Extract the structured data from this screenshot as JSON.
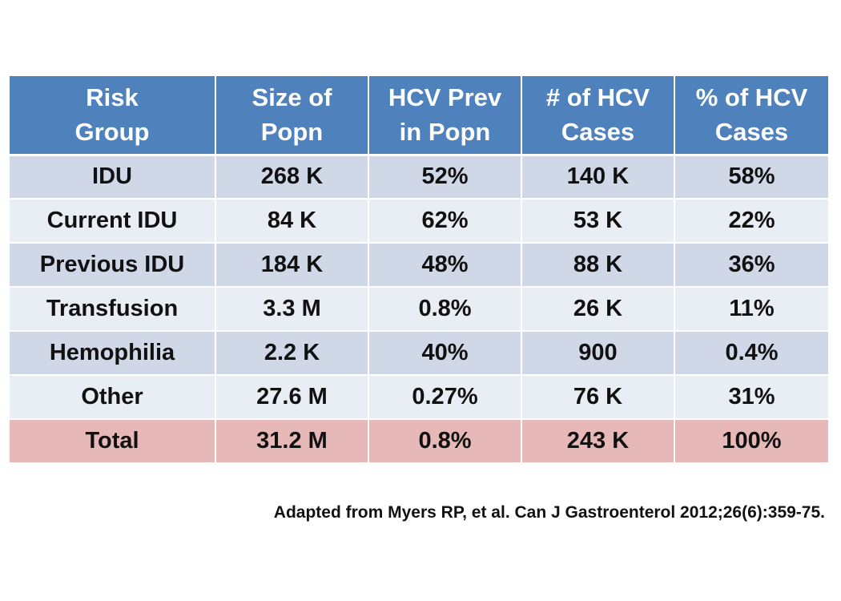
{
  "table": {
    "headers": [
      {
        "line1": "Risk",
        "line2": "Group"
      },
      {
        "line1": "Size of",
        "line2": "Popn"
      },
      {
        "line1": "HCV Prev",
        "line2": "in Popn"
      },
      {
        "line1": "# of HCV",
        "line2": "Cases"
      },
      {
        "line1": "% of HCV",
        "line2": "Cases"
      }
    ],
    "rows": [
      [
        "IDU",
        "268 K",
        "52%",
        "140 K",
        "58%"
      ],
      [
        "Current IDU",
        "84 K",
        "62%",
        "53 K",
        "22%"
      ],
      [
        "Previous IDU",
        "184 K",
        "48%",
        "88 K",
        "36%"
      ],
      [
        "Transfusion",
        "3.3 M",
        "0.8%",
        "26 K",
        "11%"
      ],
      [
        "Hemophilia",
        "2.2 K",
        "40%",
        "900",
        "0.4%"
      ],
      [
        "Other",
        "27.6 M",
        "0.27%",
        "76 K",
        "31%"
      ]
    ],
    "total": [
      "Total",
      "31.2 M",
      "0.8%",
      "243 K",
      "100%"
    ]
  },
  "citation": "Adapted from Myers RP, et al. Can J Gastroenterol 2012;26(6):359-75.",
  "colors": {
    "header_bg": "#4f81bd",
    "row_odd_bg": "#d0d8e8",
    "row_even_bg": "#e9edf4",
    "total_bg": "#e6b9b8"
  }
}
